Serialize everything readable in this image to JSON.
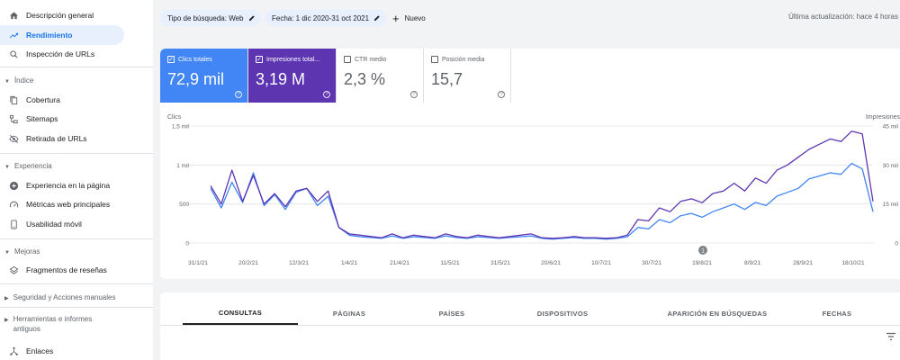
{
  "sidebar": {
    "items": [
      {
        "label": "Descripción general",
        "icon": "home-icon"
      },
      {
        "label": "Rendimiento",
        "icon": "trending-up-icon",
        "active": true
      },
      {
        "label": "Inspección de URLs",
        "icon": "search-icon"
      }
    ],
    "sections": {
      "indice": {
        "label": "Índice",
        "items": [
          {
            "label": "Cobertura",
            "icon": "file-copy-icon"
          },
          {
            "label": "Sitemaps",
            "icon": "sitemap-icon"
          },
          {
            "label": "Retirada de URLs",
            "icon": "visibility-off-icon"
          }
        ]
      },
      "experiencia": {
        "label": "Experiencia",
        "items": [
          {
            "label": "Experiencia en la página",
            "icon": "add-circle-icon"
          },
          {
            "label": "Métricas web principales",
            "icon": "speed-icon"
          },
          {
            "label": "Usabilidad móvil",
            "icon": "smartphone-icon"
          }
        ]
      },
      "mejoras": {
        "label": "Mejoras",
        "items": [
          {
            "label": "Fragmentos de reseñas",
            "icon": "layers-icon"
          }
        ]
      },
      "seguridad": {
        "label": "Seguridad y Acciones manuales"
      },
      "herramientas": {
        "label": "Herramientas e informes antiguos"
      },
      "enlaces": {
        "label": "Enlaces",
        "icon": "links-icon"
      }
    }
  },
  "topbar": {
    "filter_type": "Tipo de búsqueda: Web",
    "filter_date": "Fecha: 1 dic 2020-31 oct 2021",
    "new_label": "Nuevo",
    "updated": "Última actualización: hace 4 horas"
  },
  "metrics": [
    {
      "label": "Clics totales",
      "value": "72,9 mil",
      "checked": true,
      "color": "#4285f4"
    },
    {
      "label": "Impresiones total...",
      "value": "3,19 M",
      "checked": true,
      "color": "#5e35b1"
    },
    {
      "label": "CTR medio",
      "value": "2,3 %",
      "checked": false
    },
    {
      "label": "Posición media",
      "value": "15,7",
      "checked": false
    }
  ],
  "chart_data": {
    "type": "line",
    "left_axis": {
      "label": "Clics",
      "ticks": [
        "1,5 mil",
        "1 mil",
        "500",
        "0"
      ],
      "ylim": [
        0,
        1500
      ]
    },
    "right_axis": {
      "label": "Impresiones",
      "ticks": [
        "45 mil",
        "30 mil",
        "15 mil",
        "0"
      ],
      "ylim": [
        0,
        45000
      ]
    },
    "x_ticks": [
      "31/1/21",
      "20/2/21",
      "12/3/21",
      "1/4/21",
      "21/4/21",
      "11/5/21",
      "31/5/21",
      "20/6/21",
      "10/7/21",
      "30/7/21",
      "19/8/21",
      "8/9/21",
      "28/9/21",
      "18/10/21"
    ],
    "annotation": "1",
    "series": [
      {
        "name": "Clics",
        "color": "#4285f4",
        "values": [
          700,
          450,
          780,
          520,
          900,
          480,
          620,
          430,
          650,
          700,
          480,
          600,
          200,
          100,
          80,
          70,
          60,
          90,
          60,
          80,
          70,
          60,
          90,
          70,
          60,
          80,
          70,
          60,
          70,
          80,
          90,
          60,
          50,
          60,
          70,
          60,
          60,
          50,
          60,
          80,
          200,
          180,
          300,
          260,
          350,
          380,
          330,
          400,
          450,
          500,
          430,
          520,
          480,
          600,
          650,
          700,
          820,
          860,
          900,
          880,
          1020,
          950,
          400
        ]
      },
      {
        "name": "Impresiones",
        "color": "#5e35b1",
        "values": [
          22000,
          15000,
          28000,
          16000,
          26000,
          15000,
          19000,
          14000,
          20000,
          21000,
          16000,
          20000,
          6000,
          3500,
          3000,
          2500,
          2000,
          3500,
          2000,
          3000,
          2500,
          2000,
          3500,
          2500,
          2000,
          3000,
          2500,
          2000,
          2500,
          3000,
          3500,
          2000,
          1800,
          2000,
          2500,
          2000,
          2000,
          1800,
          2000,
          3000,
          9000,
          8500,
          13500,
          12000,
          16000,
          17000,
          15500,
          19000,
          20000,
          23000,
          20000,
          25000,
          23000,
          28000,
          30000,
          33000,
          36000,
          38000,
          40000,
          39000,
          43000,
          42000,
          16000
        ]
      }
    ]
  },
  "tabs": [
    "CONSULTAS",
    "PÁGINAS",
    "PAÍSES",
    "DISPOSITIVOS",
    "APARICIÓN EN BÚSQUEDAS",
    "FECHAS"
  ],
  "colors": {
    "accent": "#1a73e8",
    "clicks": "#4285f4",
    "impressions": "#5e35b1"
  }
}
